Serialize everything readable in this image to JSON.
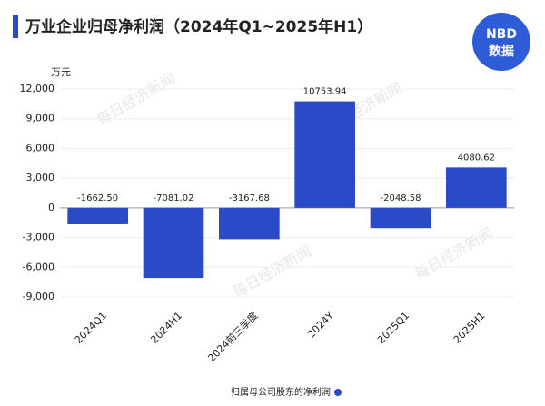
{
  "chart_data": {
    "type": "bar",
    "title": "万业企业归母净利润（2024年Q1~2025年H1）",
    "y_unit": "万元",
    "logo": {
      "top": "NBD",
      "bottom": "数据"
    },
    "watermark": "每日经济新闻",
    "categories": [
      "2024Q1",
      "2024H1",
      "2024前三季度",
      "2024Y",
      "2025Q1",
      "2025H1"
    ],
    "series": [
      {
        "name": "归属母公司股东的净利润",
        "color": "#2b4ac7",
        "values": [
          -1662.5,
          -7081.02,
          -3167.68,
          10753.94,
          -2048.58,
          4080.62
        ],
        "value_labels": [
          "-1662.50",
          "-7081.02",
          "-3167.68",
          "10753.94",
          "-2048.58",
          "4080.62"
        ]
      }
    ],
    "ylim": [
      -10000,
      12000
    ],
    "yticks": [
      {
        "value": -9000,
        "label": "-9,000"
      },
      {
        "value": -6000,
        "label": "-6,000"
      },
      {
        "value": -3000,
        "label": "-3,000"
      },
      0,
      {
        "value": 3000,
        "label": "3,000"
      },
      {
        "value": 6000,
        "label": "6,000"
      },
      {
        "value": 9000,
        "label": "9,000"
      },
      {
        "value": 12000,
        "label": "12,000"
      }
    ],
    "grid": true
  }
}
